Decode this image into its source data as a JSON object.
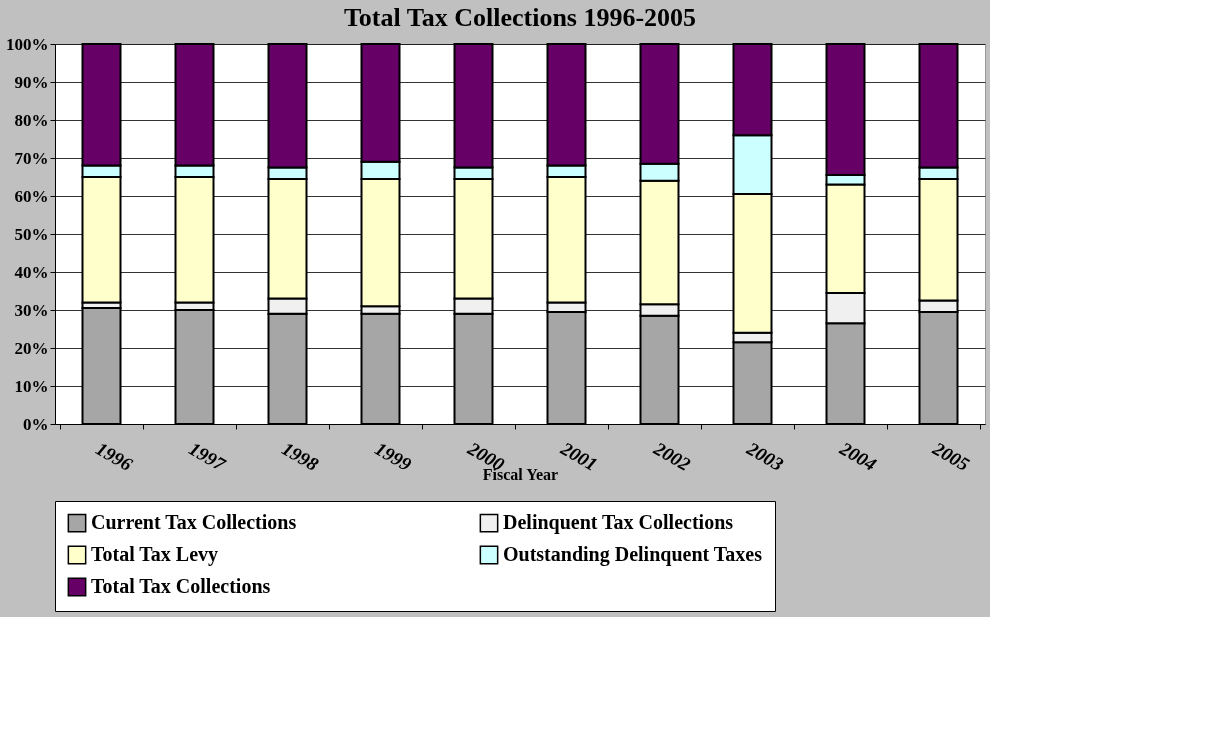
{
  "chart_data": {
    "type": "bar",
    "title": "Total Tax Collections 1996-2005",
    "xlabel": "Fiscal Year",
    "categories": [
      "1996",
      "1997",
      "1998",
      "1999",
      "2000",
      "2001",
      "2002",
      "2003",
      "2004",
      "2005"
    ],
    "stacked": true,
    "series": [
      {
        "name": "Current Tax Collections",
        "color": "#a6a6a6",
        "values": [
          30.5,
          30,
          29,
          29,
          29,
          29.5,
          28.5,
          21.5,
          26.5,
          29.5
        ]
      },
      {
        "name": "Delinquent Tax Collections",
        "color": "#f0f0f0",
        "values": [
          1.5,
          2,
          4,
          2,
          4,
          2.5,
          3,
          2.5,
          8,
          3
        ]
      },
      {
        "name": "Total Tax Levy",
        "color": "#ffffcc",
        "values": [
          33,
          33,
          31.5,
          33.5,
          31.5,
          33,
          32.5,
          36.5,
          28.5,
          32
        ]
      },
      {
        "name": "Outstanding Delinquent Taxes",
        "color": "#ccffff",
        "values": [
          3,
          3,
          3,
          4.5,
          3,
          3,
          4.5,
          15.5,
          2.5,
          3
        ]
      },
      {
        "name": "Total Tax Collections",
        "color": "#660066",
        "values": [
          32,
          32,
          32.5,
          31,
          32.5,
          32,
          31.5,
          24,
          34.5,
          32.5
        ]
      }
    ],
    "ylim": [
      0,
      100
    ],
    "yticks": [
      {
        "value": 0,
        "label": "0%"
      },
      {
        "value": 10,
        "label": "10%"
      },
      {
        "value": 20,
        "label": "20%"
      },
      {
        "value": 30,
        "label": "30%"
      },
      {
        "value": 40,
        "label": "40%"
      },
      {
        "value": 50,
        "label": "50%"
      },
      {
        "value": 60,
        "label": "60%"
      },
      {
        "value": 70,
        "label": "70%"
      },
      {
        "value": 80,
        "label": "80%"
      },
      {
        "value": 90,
        "label": "90%"
      },
      {
        "value": 100,
        "label": "100%"
      }
    ],
    "grid": "y",
    "legend": "bottom"
  }
}
